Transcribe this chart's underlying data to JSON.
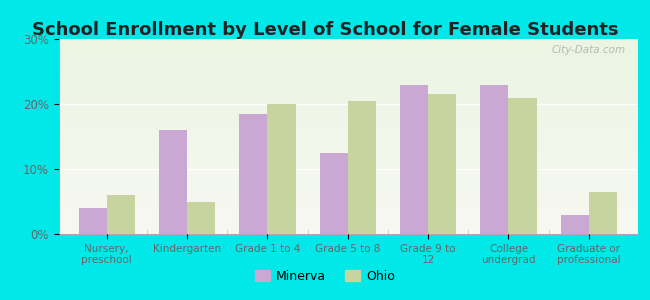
{
  "title": "School Enrollment by Level of School for Female Students",
  "categories": [
    "Nursery,\npreschool",
    "Kindergarten",
    "Grade 1 to 4",
    "Grade 5 to 8",
    "Grade 9 to\n12",
    "College\nundergrad",
    "Graduate or\nprofessional"
  ],
  "minerva": [
    4.0,
    16.0,
    18.5,
    12.5,
    23.0,
    23.0,
    3.0
  ],
  "ohio": [
    6.0,
    5.0,
    20.0,
    20.5,
    21.5,
    21.0,
    6.5
  ],
  "minerva_color": "#c9a8d4",
  "ohio_color": "#c8d4a0",
  "background_outer": "#00e8e8",
  "background_inner_top": "#eaf5e2",
  "background_inner_bottom": "#f8f8f2",
  "ylim": [
    0,
    30
  ],
  "yticks": [
    0,
    10,
    20,
    30
  ],
  "ytick_labels": [
    "0%",
    "10%",
    "20%",
    "30%"
  ],
  "title_fontsize": 13,
  "legend_labels": [
    "Minerva",
    "Ohio"
  ],
  "bar_width": 0.35,
  "title_color": "#222222",
  "tick_color": "#666666",
  "watermark_text": "City-Data.com",
  "watermark_color": "#aaaaaa"
}
